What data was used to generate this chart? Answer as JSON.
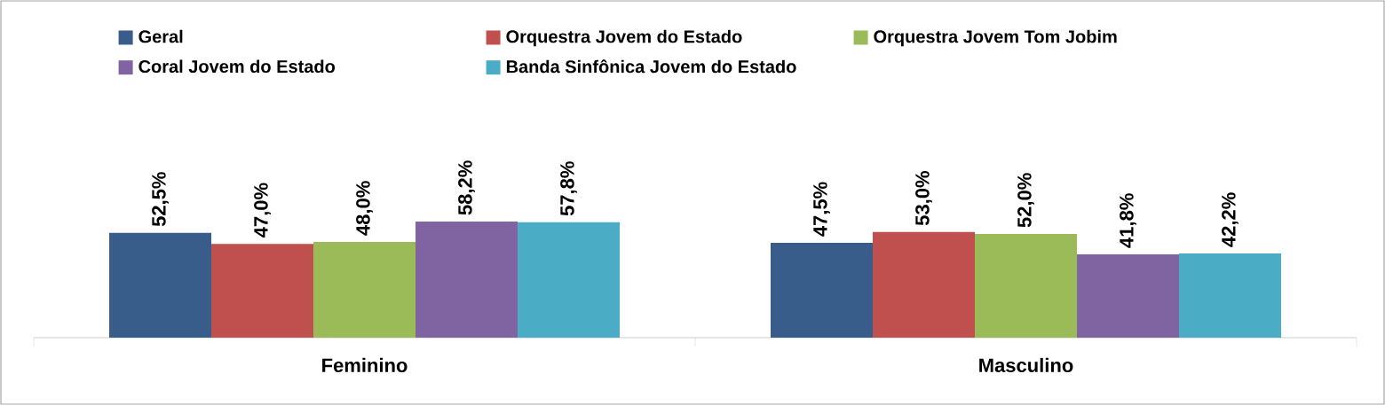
{
  "chart_data": {
    "type": "bar",
    "categories": [
      "Feminino",
      "Masculino"
    ],
    "legend": "top",
    "series": [
      {
        "name": "Geral",
        "color": "#385d8a",
        "values": [
          52.5,
          47.5
        ],
        "value_labels": [
          "52,5%",
          "47,5%"
        ]
      },
      {
        "name": "Orquestra Jovem do Estado",
        "color": "#c0504d",
        "values": [
          47.0,
          53.0
        ],
        "value_labels": [
          "47,0%",
          "53,0%"
        ]
      },
      {
        "name": "Orquestra Jovem Tom Jobim",
        "color": "#9bbb59",
        "values": [
          48.0,
          52.0
        ],
        "value_labels": [
          "48,0%",
          "52,0%"
        ]
      },
      {
        "name": "Coral Jovem do Estado",
        "color": "#8064a2",
        "values": [
          58.2,
          41.8
        ],
        "value_labels": [
          "58,2%",
          "41,8%"
        ]
      },
      {
        "name": "Banda Sinfônica Jovem do Estado",
        "color": "#4bacc6",
        "values": [
          57.8,
          42.2
        ],
        "value_labels": [
          "57,8%",
          "42,2%"
        ]
      }
    ]
  }
}
